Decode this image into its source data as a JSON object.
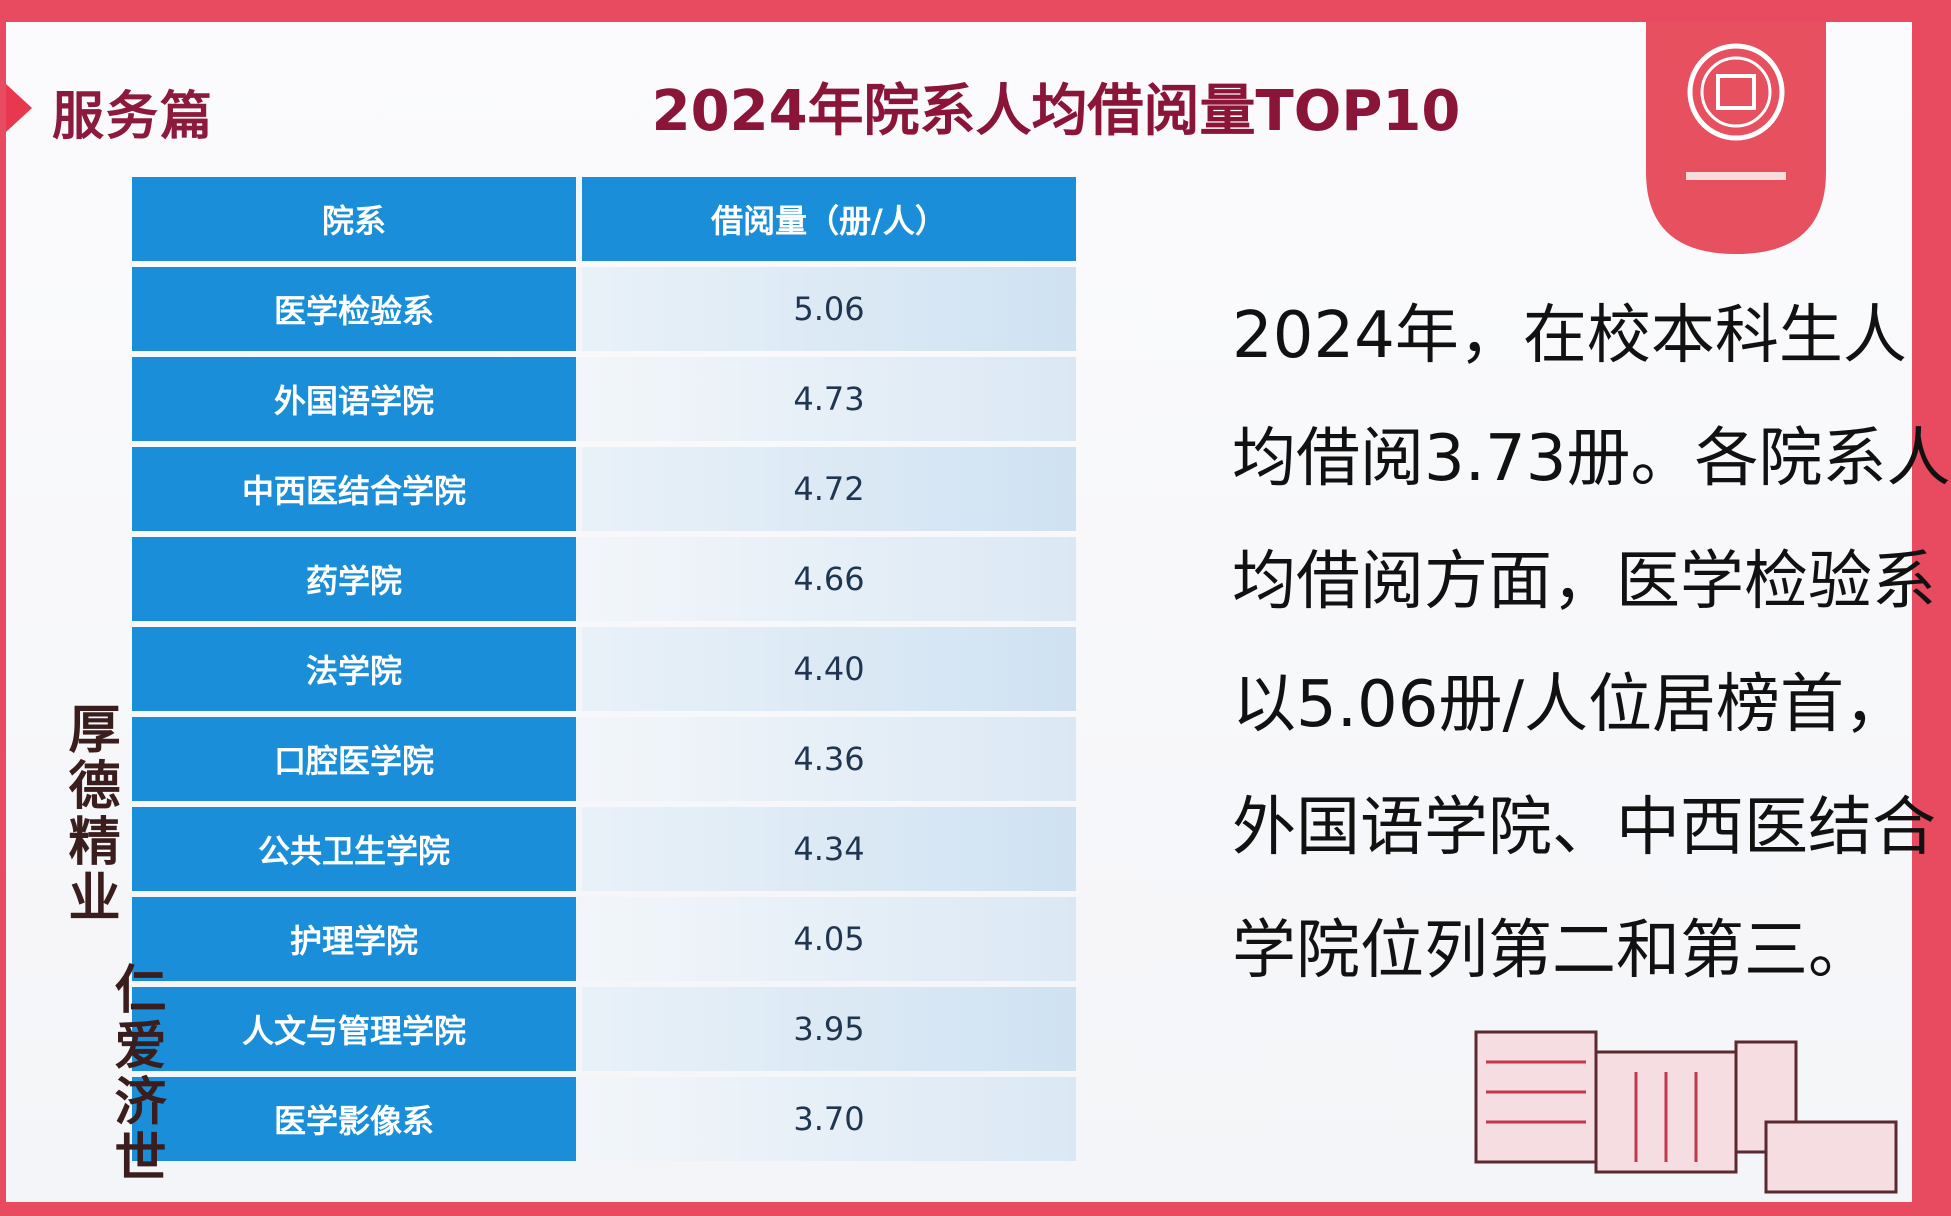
{
  "header": {
    "section": "服务篇",
    "title": "2024年院系人均借阅量TOP10"
  },
  "motto": [
    "厚德精业",
    "仁爱济世"
  ],
  "table": {
    "columns": [
      "院系",
      "借阅量（册/人）"
    ],
    "rows": [
      [
        "医学检验系",
        "5.06"
      ],
      [
        "外国语学院",
        "4.73"
      ],
      [
        "中西医结合学院",
        "4.72"
      ],
      [
        "药学院",
        "4.66"
      ],
      [
        "法学院",
        "4.40"
      ],
      [
        "口腔医学院",
        "4.36"
      ],
      [
        "公共卫生学院",
        "4.34"
      ],
      [
        "护理学院",
        "4.05"
      ],
      [
        "人文与管理学院",
        "3.95"
      ],
      [
        "医学影像系",
        "3.70"
      ]
    ]
  },
  "paragraph": [
    "2024年，在校本科生人",
    "均借阅3.73册。各院系人",
    "均借阅方面，医学检验系",
    "以5.06册/人位居榜首，",
    "外国语学院、中西医结合",
    "学院位列第二和第三。"
  ]
}
